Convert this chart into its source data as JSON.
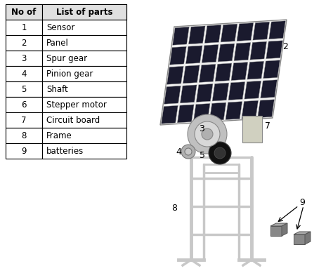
{
  "background_color": "#ffffff",
  "table_header": [
    "No of",
    "List of parts"
  ],
  "table_rows": [
    [
      "1",
      "Sensor"
    ],
    [
      "2",
      "Panel"
    ],
    [
      "3",
      "Spur gear"
    ],
    [
      "4",
      "Pinion gear"
    ],
    [
      "5",
      "Shaft"
    ],
    [
      "6",
      "Stepper motor"
    ],
    [
      "7",
      "Circuit board"
    ],
    [
      "8",
      "Frame"
    ],
    [
      "9",
      "batteries"
    ]
  ],
  "font_size": 8.5,
  "panel_color": "#1a1a2e",
  "panel_grid_color": "#cccccc",
  "frame_color": "#c8c8c8",
  "gear_color": "#b0b0b0",
  "dark_gear_color": "#222222",
  "battery_color": "#888888"
}
